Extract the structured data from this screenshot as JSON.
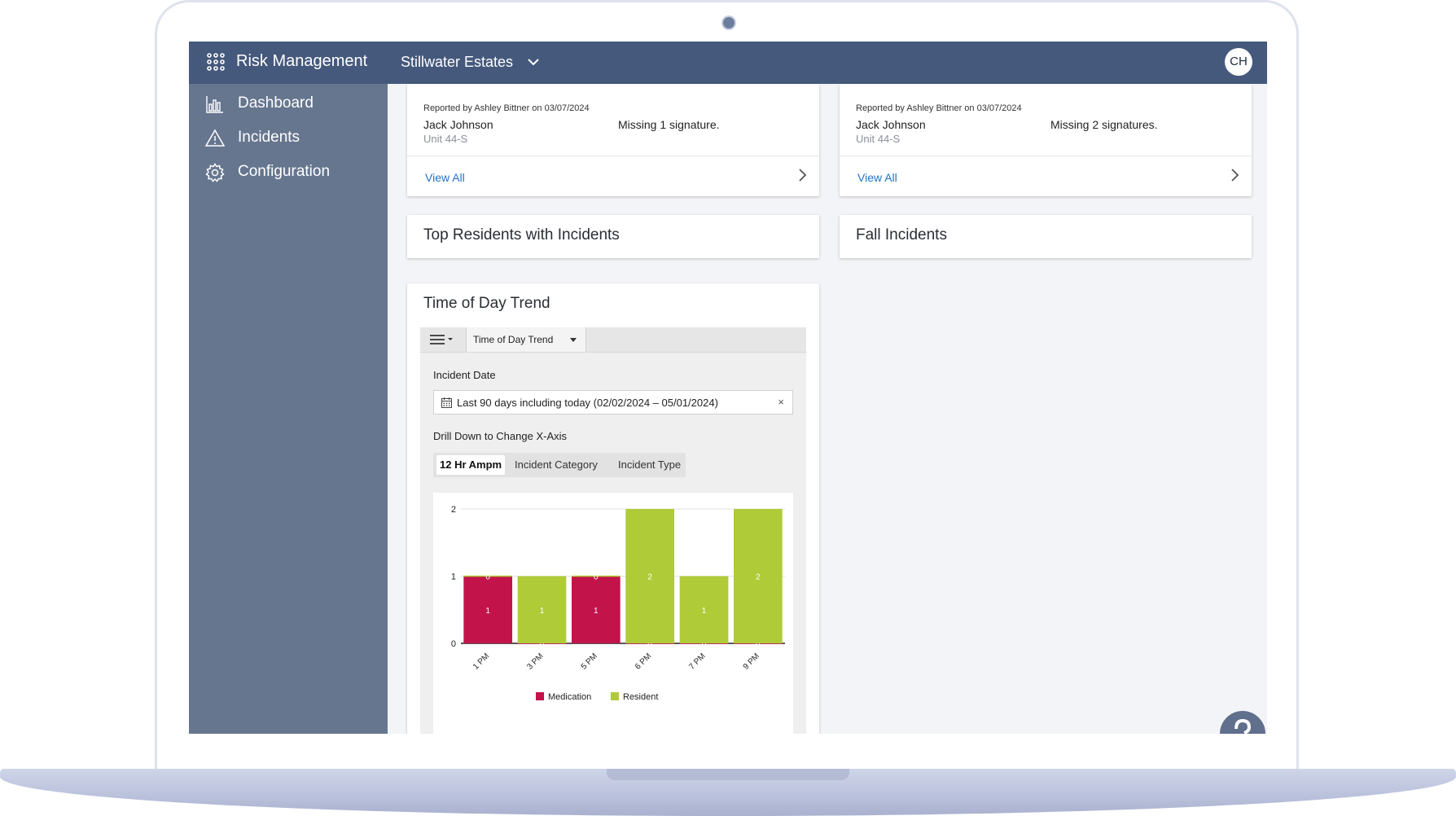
{
  "app": {
    "title": "Risk Management",
    "facility": "Stillwater Estates",
    "user_initials": "CH"
  },
  "sidebar": {
    "items": [
      {
        "label": "Dashboard",
        "icon": "bar-chart-icon"
      },
      {
        "label": "Incidents",
        "icon": "warning-icon"
      },
      {
        "label": "Configuration",
        "icon": "gear-icon"
      }
    ]
  },
  "cards": {
    "left_summary": {
      "reported": "Reported by Ashley Bittner on 03/07/2024",
      "resident": "Jack Johnson",
      "unit": "Unit 44-S",
      "status": "Missing 1 signature.",
      "link": "View All"
    },
    "right_summary": {
      "reported": "Reported by Ashley Bittner on 03/07/2024",
      "resident": "Jack Johnson",
      "unit": "Unit 44-S",
      "status": "Missing 2 signatures.",
      "link": "View All"
    },
    "top_residents_title": "Top Residents with Incidents",
    "fall_incidents_title": "Fall Incidents",
    "trend_title": "Time of Day Trend"
  },
  "widget": {
    "tab_label": "Time of Day Trend",
    "incident_date_label": "Incident Date",
    "date_range": "Last 90 days including today (02/02/2024 – 05/01/2024)",
    "clear_symbol": "×",
    "drill_label": "Drill Down to Change X-Axis",
    "drill_options": [
      "12 Hr Ampm",
      "Incident Category",
      "Incident Type"
    ],
    "active_drill": "12 Hr Ampm"
  },
  "colors": {
    "medication": "#c2134b",
    "resident": "#afcb37",
    "topbar": "#45597c",
    "sidebar": "#66768f",
    "link": "#1f73c8"
  },
  "chart_data": {
    "type": "bar",
    "stacked": true,
    "categories": [
      "1 PM",
      "3 PM",
      "5 PM",
      "6 PM",
      "7 PM",
      "9 PM"
    ],
    "series": [
      {
        "name": "Medication",
        "values": [
          1,
          0,
          1,
          0,
          0,
          0
        ],
        "color": "#c2134b"
      },
      {
        "name": "Resident",
        "values": [
          0,
          1,
          0,
          2,
          1,
          2
        ],
        "color": "#afcb37"
      }
    ],
    "y_ticks": [
      0,
      1,
      2
    ],
    "ylim": [
      0,
      2
    ],
    "legend": "bottom",
    "grid": true
  }
}
